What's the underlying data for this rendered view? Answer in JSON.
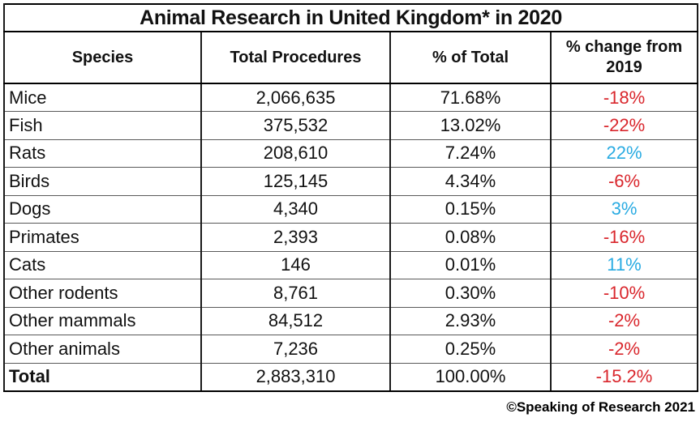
{
  "chart_data": {
    "type": "table",
    "title": "Animal Research in United Kingdom* in 2020",
    "columns": [
      "Species",
      "Total Procedures",
      "% of Total",
      "% change from 2019"
    ],
    "rows": [
      {
        "species": "Mice",
        "total": "2,066,635",
        "pct": "71.68%",
        "change": "-18%",
        "change_color": "red",
        "bold": false
      },
      {
        "species": "Fish",
        "total": "375,532",
        "pct": "13.02%",
        "change": "-22%",
        "change_color": "red",
        "bold": false
      },
      {
        "species": "Rats",
        "total": "208,610",
        "pct": "7.24%",
        "change": "22%",
        "change_color": "cyan",
        "bold": false
      },
      {
        "species": "Birds",
        "total": "125,145",
        "pct": "4.34%",
        "change": "-6%",
        "change_color": "red",
        "bold": false
      },
      {
        "species": "Dogs",
        "total": "4,340",
        "pct": "0.15%",
        "change": "3%",
        "change_color": "cyan",
        "bold": false
      },
      {
        "species": "Primates",
        "total": "2,393",
        "pct": "0.08%",
        "change": "-16%",
        "change_color": "red",
        "bold": false
      },
      {
        "species": "Cats",
        "total": "146",
        "pct": "0.01%",
        "change": "11%",
        "change_color": "cyan",
        "bold": false
      },
      {
        "species": "Other rodents",
        "total": "8,761",
        "pct": "0.30%",
        "change": "-10%",
        "change_color": "red",
        "bold": false
      },
      {
        "species": "Other mammals",
        "total": "84,512",
        "pct": "2.93%",
        "change": "-2%",
        "change_color": "red",
        "bold": false
      },
      {
        "species": "Other animals",
        "total": "7,236",
        "pct": "0.25%",
        "change": "-2%",
        "change_color": "red",
        "bold": false
      },
      {
        "species": "Total",
        "total": "2,883,310",
        "pct": "100.00%",
        "change": "-15.2%",
        "change_color": "red",
        "bold": true
      }
    ]
  },
  "footer": {
    "credit": "©Speaking of Research 2021"
  },
  "colors": {
    "red": "#d9262c",
    "cyan": "#29abe2",
    "border": "#000000"
  }
}
